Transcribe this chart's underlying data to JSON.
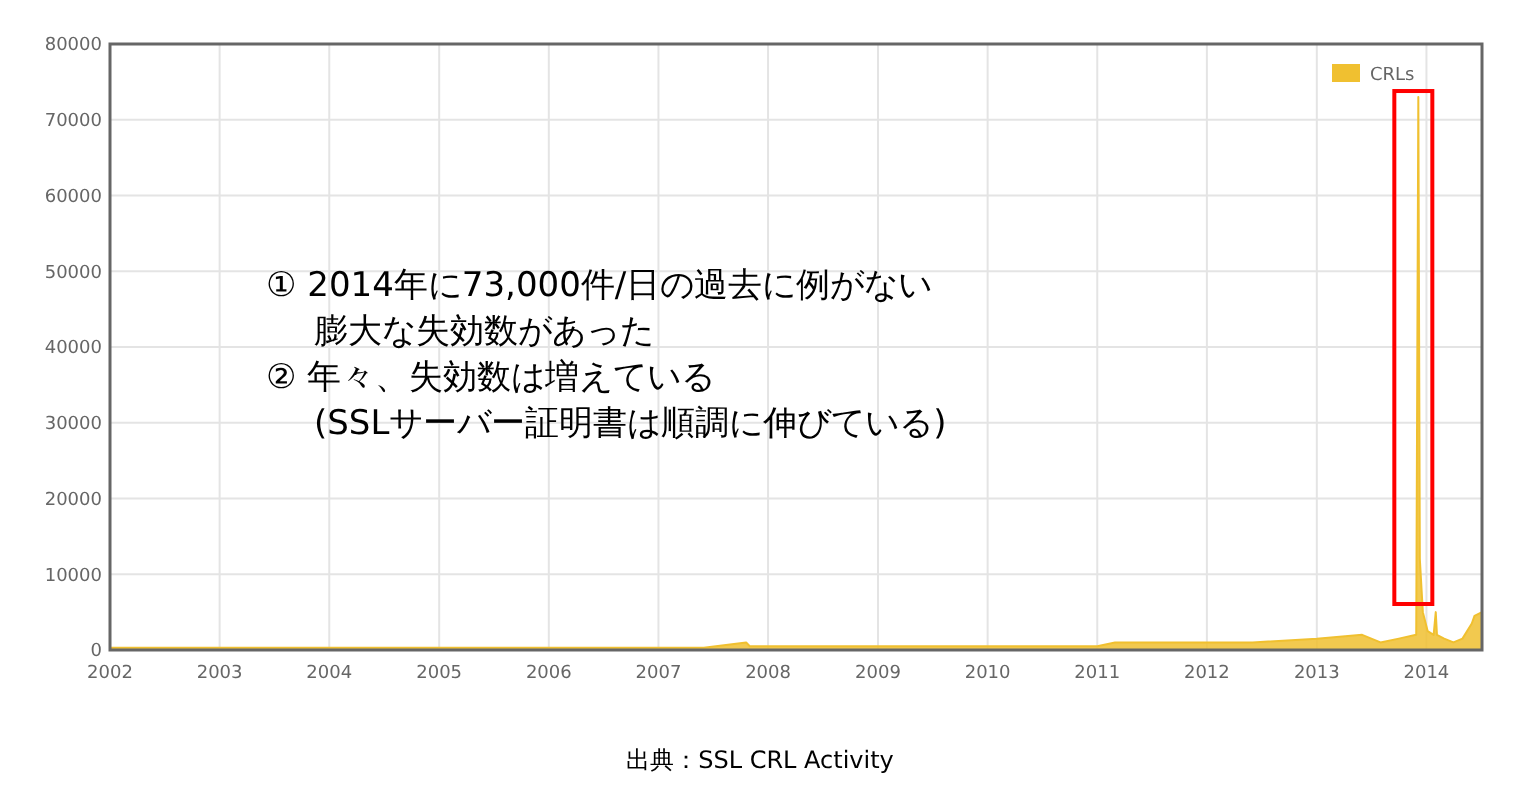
{
  "chart_data": {
    "type": "area",
    "annotations": [
      "① 2014年に73,000件/日の過去に例がない",
      "膨大な失効数があった",
      "② 年々、失効数は増えている",
      "(SSLサーバー証明書は順調に伸びている)",
      "出典：SSL CRL Activity"
    ],
    "x": [
      "2002-01-01",
      "2003-06-01",
      "2005-01-01",
      "2006-06-01",
      "2007-06-01",
      "2007-10-20",
      "2007-11-01",
      "2008-06-01",
      "2009-06-01",
      "2010-06-01",
      "2011-01-01",
      "2011-03-01",
      "2012-01-01",
      "2012-06-01",
      "2013-01-01",
      "2013-06-01",
      "2013-08-01",
      "2013-10-01",
      "2013-11-28",
      "2013-12-05",
      "2013-12-10",
      "2013-12-20",
      "2014-01-05",
      "2014-01-25",
      "2014-02-01",
      "2014-02-05",
      "2014-03-01",
      "2014-04-01",
      "2014-05-01",
      "2014-06-01",
      "2014-06-10",
      "2014-07-05"
    ],
    "series": [
      {
        "name": "CRLs",
        "color": "#f0c030",
        "values": [
          300,
          300,
          300,
          300,
          300,
          1000,
          500,
          500,
          500,
          500,
          500,
          1000,
          1000,
          1000,
          1500,
          2000,
          1000,
          1500,
          2000,
          73000,
          12000,
          5000,
          2500,
          2000,
          5000,
          2000,
          1500,
          1000,
          1500,
          3500,
          4500,
          5000
        ]
      }
    ],
    "xlim": [
      "2002-01-01",
      "2014-07-05"
    ],
    "xticks": [
      "2002",
      "2003",
      "2004",
      "2005",
      "2006",
      "2007",
      "2008",
      "2009",
      "2010",
      "2011",
      "2012",
      "2013",
      "2014"
    ],
    "ylim": [
      0,
      80000
    ],
    "yticks": [
      0,
      10000,
      20000,
      30000,
      40000,
      50000,
      60000,
      70000,
      80000
    ],
    "grid": true,
    "legend": "top right"
  }
}
